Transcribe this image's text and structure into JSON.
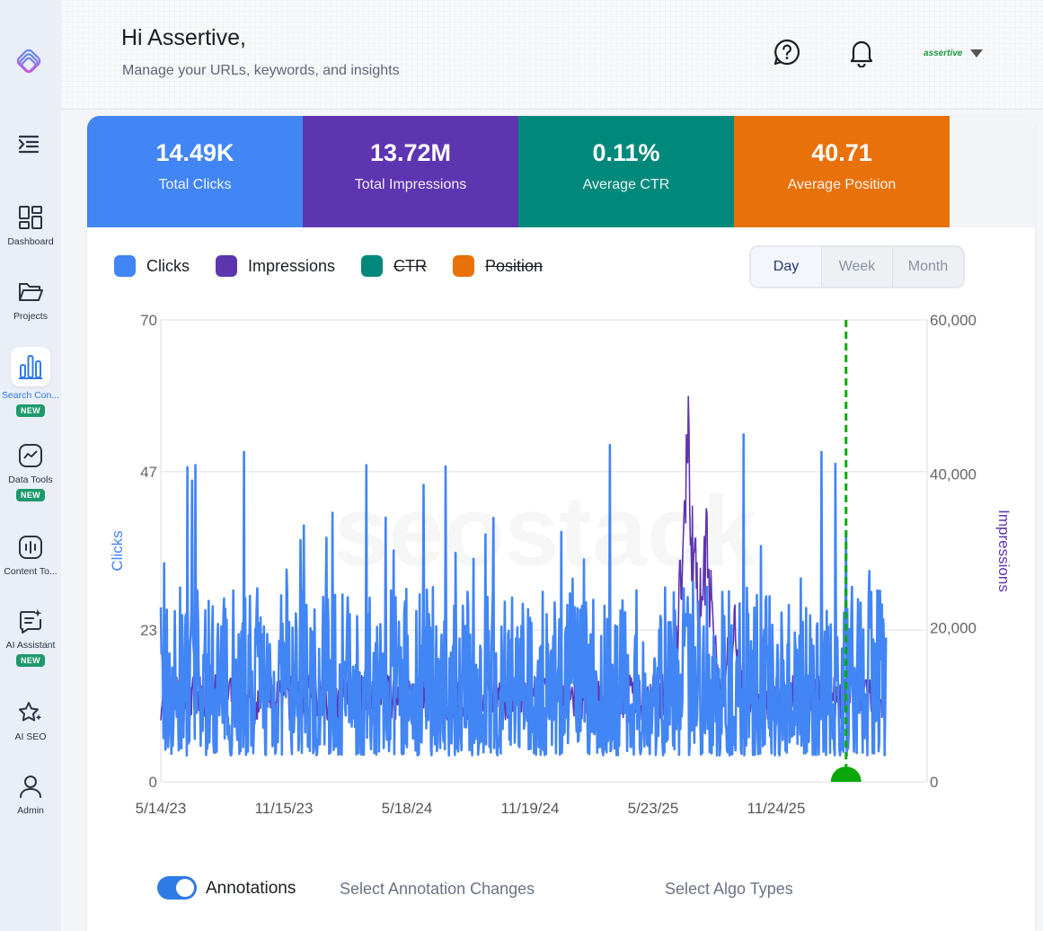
{
  "sidebar": {
    "items": [
      {
        "label": "Dashboard",
        "icon": "dashboard-icon",
        "badge": ""
      },
      {
        "label": "Projects",
        "icon": "folder-icon",
        "badge": ""
      },
      {
        "label": "Search Con...",
        "icon": "bar-chart-icon",
        "badge": "NEW",
        "active": true
      },
      {
        "label": "Data Tools",
        "icon": "trend-icon",
        "badge": "NEW"
      },
      {
        "label": "Content To...",
        "icon": "audio-wave-icon",
        "badge": ""
      },
      {
        "label": "AI Assistant",
        "icon": "sparkle-chat-icon",
        "badge": "NEW"
      },
      {
        "label": "AI SEO",
        "icon": "sparkle-star-icon",
        "badge": ""
      },
      {
        "label": "Admin",
        "icon": "user-icon",
        "badge": ""
      }
    ]
  },
  "header": {
    "greeting": "Hi Assertive,",
    "subtitle": "Manage your URLs, keywords, and insights",
    "user_logo_text": "assertive"
  },
  "stats": [
    {
      "value": "14.49K",
      "label": "Total Clicks",
      "color": "#4285f4"
    },
    {
      "value": "13.72M",
      "label": "Total Impressions",
      "color": "#5e35b1"
    },
    {
      "value": "0.11%",
      "label": "Average CTR",
      "color": "#00897b"
    },
    {
      "value": "40.71",
      "label": "Average Position",
      "color": "#e8710a"
    }
  ],
  "legend": [
    {
      "label": "Clicks",
      "color": "#4285f4",
      "enabled": true
    },
    {
      "label": "Impressions",
      "color": "#5e35b1",
      "enabled": true
    },
    {
      "label": "CTR",
      "color": "#00897b",
      "enabled": false
    },
    {
      "label": "Position",
      "color": "#e8710a",
      "enabled": false
    }
  ],
  "range_tabs": {
    "day": "Day",
    "week": "Week",
    "month": "Month",
    "selected": "Day"
  },
  "annotations": {
    "toggle_label": "Annotations",
    "toggle_on": true,
    "changes_placeholder": "Select Annotation Changes",
    "algo_placeholder": "Select Algo Types"
  },
  "chart_data": {
    "type": "line",
    "x_ticks": [
      "5/14/23",
      "11/15/23",
      "5/18/24",
      "11/19/24",
      "5/23/25",
      "11/24/25"
    ],
    "ylabel_left": "Clicks",
    "ylabel_right": "Impressions",
    "y_left_ticks": [
      "70",
      "47",
      "23",
      "0"
    ],
    "y_right_ticks": [
      "60,000",
      "40,000",
      "20,000",
      "0"
    ],
    "ylim_left": [
      0,
      70
    ],
    "ylim_right": [
      0,
      60000
    ],
    "grid": true,
    "watermark": "seostack",
    "annotation_marker_date": "3/9/26",
    "series": [
      {
        "name": "Clicks",
        "color": "#4285f4",
        "axis": "left",
        "frequency": "daily",
        "range_typical": [
          4,
          20
        ],
        "peaks": [
          {
            "date": "7/5/23",
            "value": 48
          },
          {
            "date": "1/18/24",
            "value": 37
          },
          {
            "date": "6/12/24",
            "value": 45
          },
          {
            "date": "9/25/24",
            "value": 40
          },
          {
            "date": "3/9/26",
            "value": 38
          }
        ]
      },
      {
        "name": "Impressions",
        "color": "#5e35b1",
        "axis": "right",
        "frequency": "daily",
        "range_typical": [
          8000,
          14000
        ],
        "peaks": [
          {
            "date": "7/15/25",
            "value": 52000
          },
          {
            "date": "8/10/25",
            "value": 38500
          },
          {
            "date": "9/20/25",
            "value": 26000
          }
        ]
      }
    ]
  }
}
